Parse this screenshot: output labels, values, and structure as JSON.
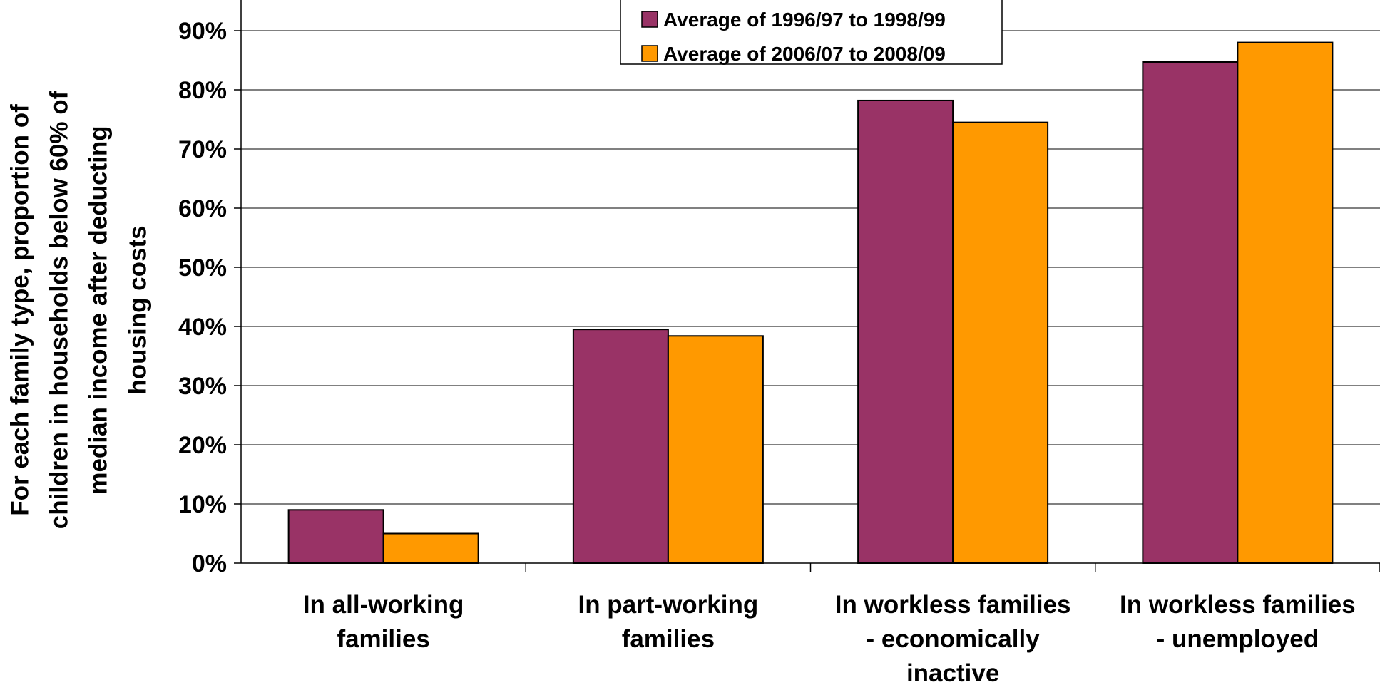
{
  "chart_data": {
    "type": "bar",
    "ylabel_lines": [
      "For each family type, proportion of",
      "children in households below 60% of",
      "median income after deducting",
      "housing costs"
    ],
    "categories": [
      [
        "In all-working",
        "families"
      ],
      [
        "In part-working",
        "families"
      ],
      [
        "In workless families",
        "- economically",
        "inactive"
      ],
      [
        "In workless families",
        "- unemployed"
      ]
    ],
    "series": [
      {
        "name": "Average of 1996/97 to 1998/99",
        "color": "#993366",
        "values": [
          9,
          39.5,
          78.2,
          84.7
        ]
      },
      {
        "name": "Average of 2006/07 to 2008/09",
        "color": "#FF9900",
        "values": [
          5,
          38.4,
          74.5,
          88
        ]
      }
    ],
    "ylim": [
      0,
      90
    ],
    "yticks": [
      "0%",
      "10%",
      "20%",
      "30%",
      "40%",
      "50%",
      "60%",
      "70%",
      "80%",
      "90%"
    ],
    "grid": true,
    "legend_position": "top-center"
  }
}
